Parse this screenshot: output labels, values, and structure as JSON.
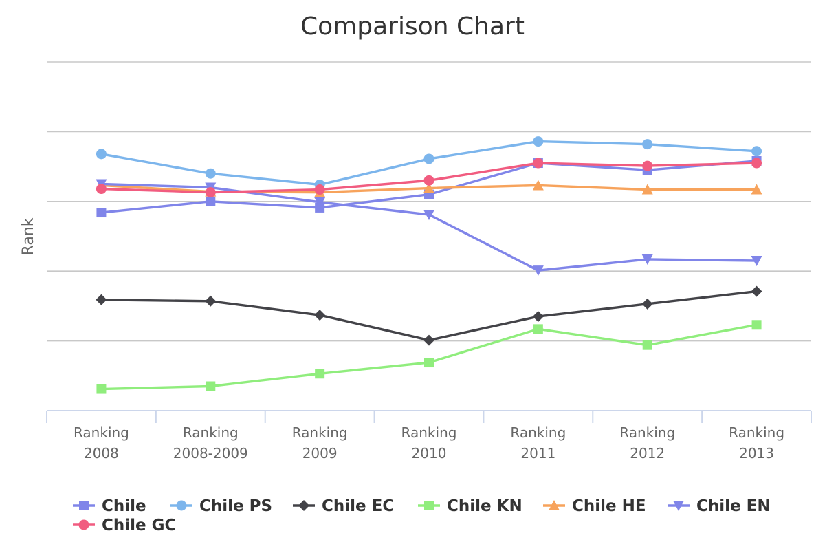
{
  "chart_data": {
    "type": "line",
    "title": "Comparison Chart",
    "xlabel": "",
    "ylabel": "Rank",
    "categories": [
      [
        "Ranking",
        "2008"
      ],
      [
        "Ranking",
        "2008-2009"
      ],
      [
        "Ranking",
        "2009"
      ],
      [
        "Ranking",
        "2010"
      ],
      [
        "Ranking",
        "2011"
      ],
      [
        "Ranking",
        "2012"
      ],
      [
        "Ranking",
        "2013"
      ]
    ],
    "ylim": [
      0,
      5
    ],
    "y_tick_labels_shown": false,
    "grid": true,
    "legend_position": "bottom",
    "series": [
      {
        "name": "Chile",
        "color": "#8085e9",
        "marker": "square",
        "values": [
          2.84,
          3.0,
          2.91,
          3.1,
          3.55,
          3.45,
          3.58
        ]
      },
      {
        "name": "Chile PS",
        "color": "#7cb5ec",
        "marker": "circle",
        "values": [
          3.68,
          3.4,
          3.24,
          3.61,
          3.86,
          3.82,
          3.72
        ]
      },
      {
        "name": "Chile EC",
        "color": "#434348",
        "marker": "diamond",
        "values": [
          1.59,
          1.57,
          1.37,
          1.01,
          1.35,
          1.53,
          1.71
        ]
      },
      {
        "name": "Chile KN",
        "color": "#90ed7d",
        "marker": "square",
        "values": [
          0.31,
          0.35,
          0.53,
          0.69,
          1.17,
          0.94,
          1.23
        ]
      },
      {
        "name": "Chile HE",
        "color": "#f7a35c",
        "marker": "triangle",
        "values": [
          3.23,
          3.14,
          3.13,
          3.19,
          3.23,
          3.17,
          3.17
        ]
      },
      {
        "name": "Chile EN",
        "color": "#8085e9",
        "marker": "triangle-down",
        "values": [
          3.25,
          3.2,
          2.99,
          2.81,
          2.01,
          2.17,
          2.15
        ]
      },
      {
        "name": "Chile GC",
        "color": "#f15c80",
        "marker": "circle",
        "values": [
          3.18,
          3.13,
          3.17,
          3.3,
          3.55,
          3.51,
          3.55
        ]
      }
    ]
  }
}
